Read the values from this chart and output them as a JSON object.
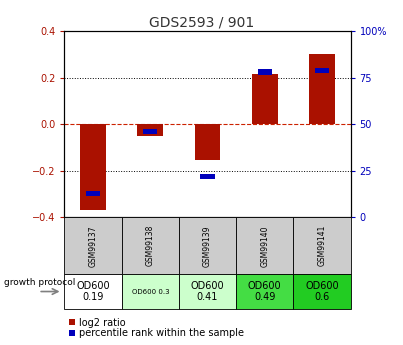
{
  "title": "GDS2593 / 901",
  "samples": [
    "GSM99137",
    "GSM99138",
    "GSM99139",
    "GSM99140",
    "GSM99141"
  ],
  "log2_ratio": [
    -0.37,
    -0.05,
    -0.155,
    0.215,
    0.3
  ],
  "percentile_rank": [
    13,
    46,
    22,
    78,
    79
  ],
  "ylim_left": [
    -0.4,
    0.4
  ],
  "ylim_right": [
    0,
    100
  ],
  "left_ticks": [
    -0.4,
    -0.2,
    0.0,
    0.2,
    0.4
  ],
  "right_ticks": [
    0,
    25,
    50,
    75,
    100
  ],
  "bar_color_red": "#aa1100",
  "bar_color_blue": "#0000bb",
  "zero_line_color": "#cc2200",
  "protocol_labels": [
    "OD600\n0.19",
    "OD600 0.3",
    "OD600\n0.41",
    "OD600\n0.49",
    "OD600\n0.6"
  ],
  "protocol_colors": [
    "#ffffff",
    "#ccffcc",
    "#ccffcc",
    "#44dd44",
    "#22cc22"
  ],
  "protocol_text_sizes": [
    7,
    5,
    7,
    7,
    7
  ],
  "sample_bg_color": "#cccccc",
  "title_color": "#333333",
  "bar_width": 0.45
}
